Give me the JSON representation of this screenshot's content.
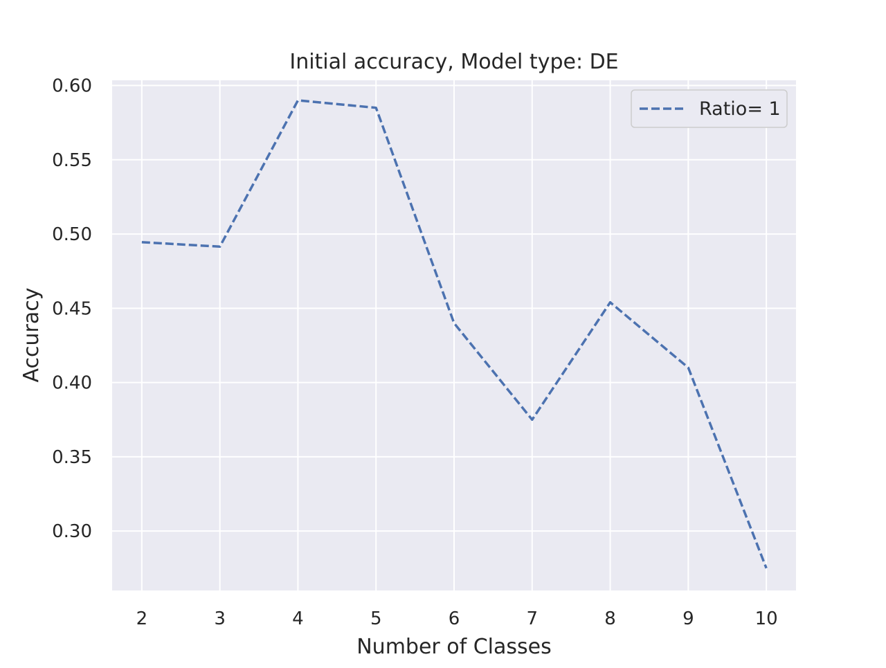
{
  "chart_data": {
    "type": "line",
    "title": "Initial accuracy, Model type: DE",
    "xlabel": "Number of Classes",
    "ylabel": "Accuracy",
    "x": [
      2,
      3,
      4,
      5,
      6,
      7,
      8,
      9,
      10
    ],
    "x_ticks": [
      "2",
      "3",
      "4",
      "5",
      "6",
      "7",
      "8",
      "9",
      "10"
    ],
    "y_ticks": [
      "0.30",
      "0.35",
      "0.40",
      "0.45",
      "0.50",
      "0.55",
      "0.60"
    ],
    "y_tick_values": [
      0.3,
      0.35,
      0.4,
      0.45,
      0.5,
      0.55,
      0.6
    ],
    "xlim": [
      1.62,
      10.38
    ],
    "ylim": [
      0.26,
      0.6035
    ],
    "grid": true,
    "legend_position": "top-right",
    "series": [
      {
        "name": "Ratio= 1",
        "values": [
          0.4945,
          0.4915,
          0.59,
          0.585,
          0.44,
          0.375,
          0.454,
          0.41,
          0.275
        ],
        "color": "#4c72b0",
        "line_style": "dashed"
      }
    ],
    "colors": {
      "background": "#eaeaf2",
      "grid": "#ffffff",
      "text": "#262626"
    }
  }
}
